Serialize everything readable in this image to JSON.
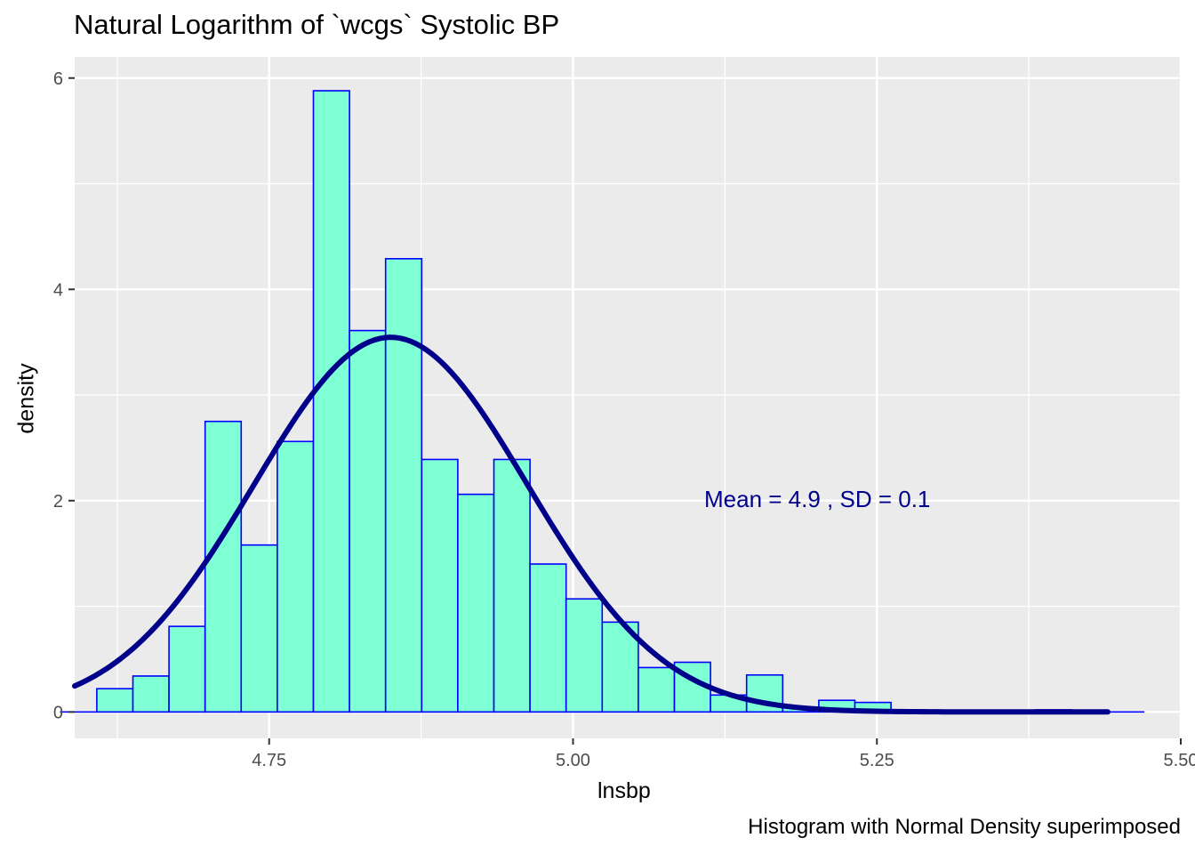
{
  "title": "Natural Logarithm of `wcgs` Systolic BP",
  "caption": "Histogram with Normal Density superimposed",
  "colors": {
    "panel_bg": "#EBEBEB",
    "grid": "#FFFFFF",
    "bar_fill": "#7FFFD4",
    "bar_stroke": "#0000FF",
    "curve": "#00008B",
    "annotation": "#00008B"
  },
  "chart_data": {
    "type": "bar",
    "xlabel": "lnsbp",
    "ylabel": "density",
    "xlim": [
      4.59,
      5.5
    ],
    "ylim": [
      -0.25,
      6.2
    ],
    "x_ticks": [
      4.75,
      5.0,
      5.25,
      5.5
    ],
    "x_tick_labels": [
      "4.75",
      "5.00",
      "5.25",
      "5.50"
    ],
    "y_ticks": [
      0,
      2,
      4,
      6
    ],
    "y_tick_labels": [
      "0",
      "2",
      "4",
      "6"
    ],
    "grid": true,
    "bin_width": 0.0297,
    "bins_start": 4.5785,
    "densities": [
      0.0,
      0.22,
      0.34,
      0.81,
      2.75,
      1.58,
      2.56,
      5.88,
      3.61,
      4.29,
      2.39,
      2.06,
      2.39,
      1.4,
      1.07,
      0.85,
      0.42,
      0.47,
      0.16,
      0.35,
      0.04,
      0.11,
      0.09,
      0.02,
      0.0,
      0.0,
      0.0,
      0.02,
      0.0,
      0.0
    ],
    "normal_curve": {
      "mean": 4.85,
      "sd": 0.1125,
      "x_range": [
        4.59,
        5.44
      ]
    },
    "annotation": "Mean =  4.9 , SD =  0.1"
  }
}
